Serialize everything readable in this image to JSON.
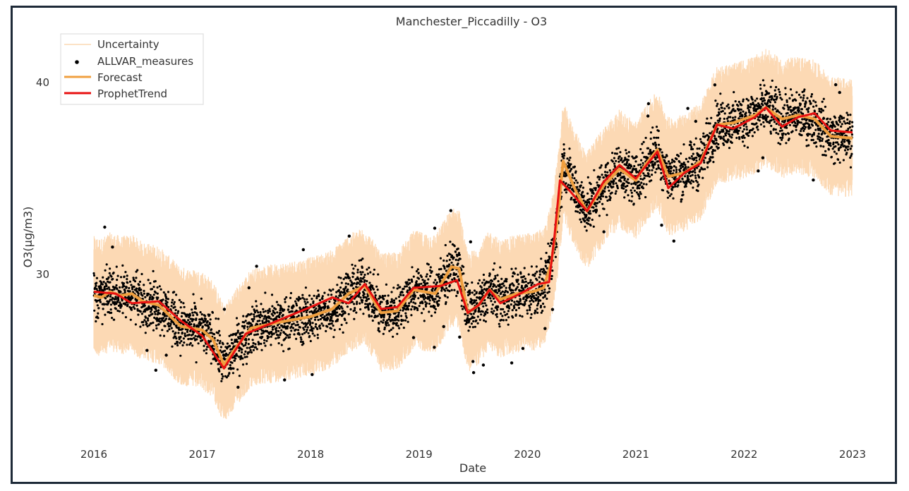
{
  "chart_data": {
    "type": "line",
    "title": "Manchester_Piccadilly - O3",
    "xlabel": "Date",
    "ylabel": "O3(µg/m3)",
    "x_ticks": [
      "2016",
      "2017",
      "2018",
      "2019",
      "2020",
      "2021",
      "2022",
      "2023"
    ],
    "y_ticks": [
      30,
      40
    ],
    "xlim": [
      2015.93,
      2023.07
    ],
    "ylim": [
      22.2,
      43.6
    ],
    "grid": false,
    "legend": {
      "placement": "top-left",
      "entries": [
        "Uncertainty",
        "ALLVAR_measures",
        "Forecast",
        "ProphetTrend"
      ]
    },
    "colors": {
      "uncertainty": "#fcd9b4",
      "measures": "#000000",
      "forecast": "#f0a040",
      "trend": "#e81010"
    },
    "series": [
      {
        "name": "ProphetTrend",
        "x": [
          2016.0,
          2016.2,
          2016.35,
          2016.6,
          2016.8,
          2017.0,
          2017.2,
          2017.4,
          2017.7,
          2018.0,
          2018.2,
          2018.35,
          2018.5,
          2018.65,
          2018.8,
          2018.95,
          2019.2,
          2019.35,
          2019.45,
          2019.55,
          2019.65,
          2019.75,
          2019.9,
          2020.0,
          2020.1,
          2020.2,
          2020.25,
          2020.3,
          2020.4,
          2020.55,
          2020.7,
          2020.85,
          2021.0,
          2021.1,
          2021.2,
          2021.3,
          2021.45,
          2021.6,
          2021.75,
          2021.9,
          2022.1,
          2022.2,
          2022.35,
          2022.5,
          2022.65,
          2022.8,
          2023.0
        ],
        "y": [
          29.1,
          29.0,
          28.5,
          28.6,
          27.6,
          26.8,
          25.1,
          26.9,
          27.6,
          28.3,
          28.8,
          28.5,
          29.5,
          28.2,
          28.3,
          29.3,
          29.4,
          29.7,
          28.0,
          28.4,
          29.2,
          28.5,
          28.9,
          29.2,
          29.5,
          29.6,
          32.0,
          34.9,
          34.3,
          33.3,
          34.8,
          35.7,
          35.0,
          35.7,
          36.4,
          34.5,
          35.3,
          35.8,
          37.8,
          37.6,
          38.2,
          38.7,
          37.7,
          38.2,
          38.4,
          37.5,
          37.4
        ]
      },
      {
        "name": "Forecast",
        "x": [
          2016.0,
          2016.07,
          2016.15,
          2016.25,
          2016.35,
          2016.45,
          2016.6,
          2016.8,
          2017.0,
          2017.1,
          2017.2,
          2017.3,
          2017.45,
          2017.7,
          2018.0,
          2018.2,
          2018.35,
          2018.5,
          2018.65,
          2018.8,
          2018.95,
          2019.15,
          2019.3,
          2019.37,
          2019.45,
          2019.55,
          2019.65,
          2019.75,
          2019.9,
          2020.05,
          2020.15,
          2020.22,
          2020.28,
          2020.33,
          2020.45,
          2020.55,
          2020.7,
          2020.85,
          2021.0,
          2021.1,
          2021.2,
          2021.3,
          2021.45,
          2021.6,
          2021.75,
          2021.9,
          2022.1,
          2022.2,
          2022.35,
          2022.5,
          2022.65,
          2022.8,
          2023.0
        ],
        "y": [
          28.9,
          28.8,
          29.1,
          28.9,
          29.0,
          28.6,
          28.4,
          27.3,
          27.1,
          26.6,
          25.3,
          26.1,
          27.2,
          27.5,
          27.8,
          28.2,
          29.0,
          29.4,
          28.0,
          28.1,
          29.2,
          29.0,
          30.4,
          30.3,
          28.0,
          28.4,
          29.2,
          28.7,
          29.0,
          29.1,
          29.3,
          30.6,
          33.0,
          35.9,
          34.3,
          33.3,
          34.6,
          35.5,
          34.9,
          35.8,
          36.5,
          35.1,
          35.3,
          35.9,
          37.8,
          37.9,
          38.3,
          38.7,
          38.1,
          38.3,
          38.1,
          37.2,
          37.1
        ]
      },
      {
        "name": "ALLVAR_measures",
        "x_range": [
          2016.0,
          2023.0
        ],
        "spread": 0.9,
        "notes": "Dense daily measurements scattered around the forecast curve"
      },
      {
        "name": "Uncertainty",
        "band_halfwidth": 2.1
      }
    ]
  }
}
